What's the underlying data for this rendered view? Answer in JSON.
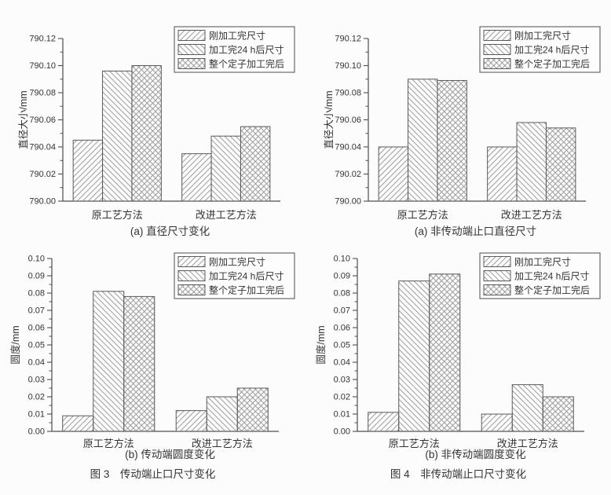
{
  "colors": {
    "background": "#fcfcfc",
    "axis": "#4d4d4d",
    "text": "#333333",
    "bar_border": "#5a5a5a",
    "hatch": "#9c9c9c",
    "legend_border": "#4d4d4d",
    "legend_bg": "#fdfdfd"
  },
  "figure_captions": [
    "图 3　传动端止口尺寸变化",
    "图 4　非传动端止口尺寸变化"
  ],
  "chart_data": [
    {
      "type": "bar",
      "caption": "(a) 直径尺寸变化",
      "ylabel": "直径大小/mm",
      "xlabel": "",
      "ylim": [
        790.0,
        790.12
      ],
      "ytick_interval": 0.02,
      "minor_tick_interval": 0.01,
      "tick_decimals": 2,
      "grid": false,
      "legend_position": "top-right",
      "categories": [
        "原工艺方法",
        "改进工艺方法"
      ],
      "series": [
        {
          "name": "刚加工完尺寸",
          "pattern": "diag-forward",
          "values": [
            790.045,
            790.035
          ]
        },
        {
          "name": "加工完24 h后尺寸",
          "pattern": "diag-backward",
          "values": [
            790.096,
            790.048
          ]
        },
        {
          "name": "整个定子加工完后",
          "pattern": "crosshatch",
          "values": [
            790.1,
            790.055
          ]
        }
      ]
    },
    {
      "type": "bar",
      "caption": "(a) 非传动端止口直径尺寸",
      "ylabel": "直径大小/mm",
      "xlabel": "",
      "ylim": [
        790.0,
        790.12
      ],
      "ytick_interval": 0.02,
      "minor_tick_interval": 0.01,
      "tick_decimals": 2,
      "grid": false,
      "legend_position": "top-right",
      "categories": [
        "原工艺方法",
        "改进工艺方法"
      ],
      "series": [
        {
          "name": "刚加工完尺寸",
          "pattern": "diag-forward",
          "values": [
            790.04,
            790.04
          ]
        },
        {
          "name": "加工完24 h后尺寸",
          "pattern": "diag-backward",
          "values": [
            790.09,
            790.058
          ]
        },
        {
          "name": "整个定子加工完后",
          "pattern": "crosshatch",
          "values": [
            790.089,
            790.054
          ]
        }
      ]
    },
    {
      "type": "bar",
      "caption": "(b) 传动端圆度变化",
      "ylabel": "圆度/mm",
      "xlabel": "",
      "ylim": [
        0.0,
        0.1
      ],
      "ytick_interval": 0.01,
      "minor_tick_interval": 0.005,
      "tick_decimals": 2,
      "grid": false,
      "legend_position": "top-right",
      "categories": [
        "原工艺方法",
        "改进工艺方法"
      ],
      "series": [
        {
          "name": "刚加工完尺寸",
          "pattern": "diag-forward",
          "values": [
            0.009,
            0.012
          ]
        },
        {
          "name": "加工完24 h后尺寸",
          "pattern": "diag-backward",
          "values": [
            0.081,
            0.02
          ]
        },
        {
          "name": "整个定子加工完后",
          "pattern": "crosshatch",
          "values": [
            0.078,
            0.025
          ]
        }
      ]
    },
    {
      "type": "bar",
      "caption": "(b) 非传动端圆度变化",
      "ylabel": "圆度/mm",
      "xlabel": "",
      "ylim": [
        0.0,
        0.1
      ],
      "ytick_interval": 0.01,
      "minor_tick_interval": 0.005,
      "tick_decimals": 2,
      "grid": false,
      "legend_position": "top-right",
      "categories": [
        "原工艺方法",
        "改进工艺方法"
      ],
      "series": [
        {
          "name": "刚加工完尺寸",
          "pattern": "diag-forward",
          "values": [
            0.011,
            0.01
          ]
        },
        {
          "name": "加工完24 h后尺寸",
          "pattern": "diag-backward",
          "values": [
            0.087,
            0.027
          ]
        },
        {
          "name": "整个定子加工完后",
          "pattern": "crosshatch",
          "values": [
            0.091,
            0.02
          ]
        }
      ]
    }
  ]
}
